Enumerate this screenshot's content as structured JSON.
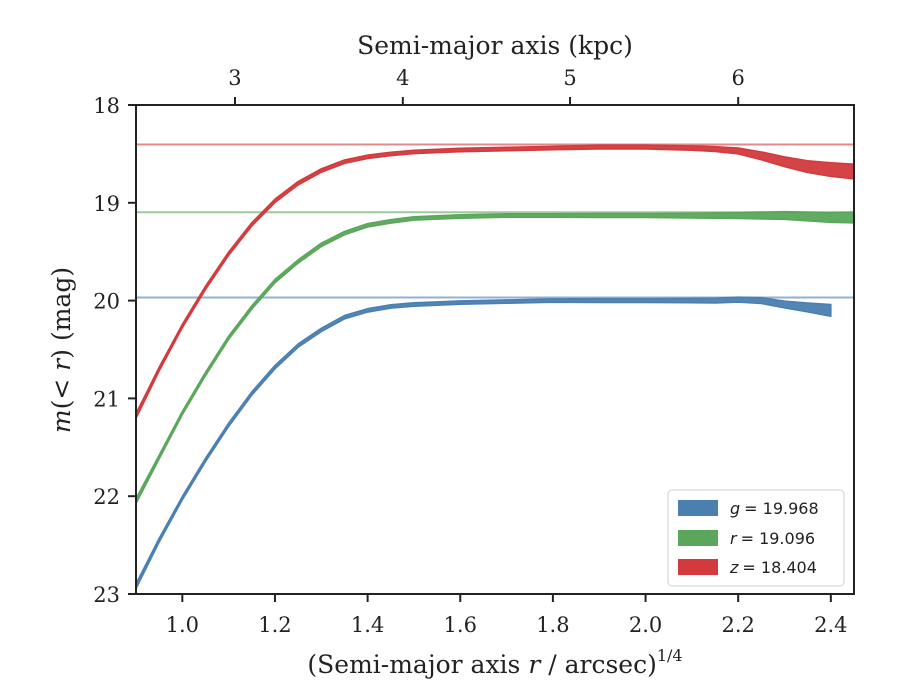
{
  "chart_data": {
    "type": "line",
    "xlabel": "(Semi-major axis r / arcsec)^1/4",
    "xlabel_parts": {
      "pre": "(Semi-major axis ",
      "var": "r",
      "post": " / arcsec)",
      "sup": "1/4"
    },
    "ylabel": "m(<r) (mag)",
    "ylabel_parts": {
      "func": "m",
      "open": "(",
      "arg": "< r",
      "close": ")",
      "unit": " (mag)"
    },
    "top_xlabel": "Semi-major axis (kpc)",
    "xlim": [
      0.9,
      2.45
    ],
    "ylim": [
      23,
      18
    ],
    "y_inverted": true,
    "x_ticks": [
      1.0,
      1.2,
      1.4,
      1.6,
      1.8,
      2.0,
      2.2,
      2.4
    ],
    "x_tick_labels": [
      "1.0",
      "1.2",
      "1.4",
      "1.6",
      "1.8",
      "2.0",
      "2.2",
      "2.4"
    ],
    "y_ticks": [
      18,
      19,
      20,
      21,
      22,
      23
    ],
    "y_tick_labels": [
      "18",
      "19",
      "20",
      "21",
      "22",
      "23"
    ],
    "top_x_ticks": [
      1.1137,
      1.476,
      1.837,
      2.2
    ],
    "top_x_tick_labels": [
      "3",
      "4",
      "5",
      "6"
    ],
    "grid": false,
    "legend_position": "lower-right",
    "series": [
      {
        "name": "g = 19.968",
        "legend_var": "g",
        "legend_value": "= 19.968",
        "color": "#4a7fb0",
        "asymptote": 19.968,
        "x": [
          0.9,
          0.95,
          1.0,
          1.05,
          1.1,
          1.15,
          1.2,
          1.25,
          1.3,
          1.35,
          1.4,
          1.45,
          1.5,
          1.55,
          1.6,
          1.7,
          1.8,
          1.9,
          2.0,
          2.1,
          2.15,
          2.2,
          2.25,
          2.3,
          2.35,
          2.4
        ],
        "y": [
          22.92,
          22.45,
          22.02,
          21.63,
          21.27,
          20.95,
          20.68,
          20.46,
          20.3,
          20.17,
          20.1,
          20.06,
          20.04,
          20.03,
          20.02,
          20.01,
          20.0,
          20.0,
          20.0,
          20.0,
          20.0,
          19.99,
          20.0,
          20.04,
          20.07,
          20.1
        ],
        "band_width": [
          0.05,
          0.04,
          0.035,
          0.035,
          0.035,
          0.035,
          0.035,
          0.035,
          0.035,
          0.035,
          0.035,
          0.035,
          0.035,
          0.035,
          0.035,
          0.035,
          0.035,
          0.04,
          0.04,
          0.045,
          0.05,
          0.05,
          0.06,
          0.07,
          0.09,
          0.12
        ]
      },
      {
        "name": "r = 19.096",
        "legend_var": "r",
        "legend_value": "= 19.096",
        "color": "#5aa65a",
        "asymptote": 19.096,
        "x": [
          0.9,
          0.95,
          1.0,
          1.05,
          1.1,
          1.15,
          1.2,
          1.25,
          1.3,
          1.35,
          1.4,
          1.45,
          1.5,
          1.55,
          1.6,
          1.7,
          1.8,
          1.9,
          2.0,
          2.1,
          2.2,
          2.3,
          2.4,
          2.45
        ],
        "y": [
          22.05,
          21.6,
          21.15,
          20.75,
          20.38,
          20.07,
          19.8,
          19.6,
          19.43,
          19.31,
          19.23,
          19.19,
          19.16,
          19.15,
          19.14,
          19.13,
          19.13,
          19.13,
          19.13,
          19.13,
          19.13,
          19.13,
          19.15,
          19.15
        ],
        "band_width": [
          0.05,
          0.04,
          0.035,
          0.035,
          0.035,
          0.035,
          0.035,
          0.035,
          0.035,
          0.035,
          0.035,
          0.035,
          0.035,
          0.035,
          0.035,
          0.035,
          0.035,
          0.04,
          0.04,
          0.05,
          0.06,
          0.08,
          0.1,
          0.11
        ]
      },
      {
        "name": "z = 18.404",
        "legend_var": "z",
        "legend_value": "= 18.404",
        "color": "#d23a3d",
        "asymptote": 18.404,
        "x": [
          0.9,
          0.95,
          1.0,
          1.05,
          1.1,
          1.15,
          1.2,
          1.25,
          1.3,
          1.35,
          1.4,
          1.45,
          1.5,
          1.55,
          1.6,
          1.7,
          1.8,
          1.9,
          2.0,
          2.1,
          2.15,
          2.2,
          2.25,
          2.3,
          2.35,
          2.4,
          2.45
        ],
        "y": [
          21.18,
          20.7,
          20.26,
          19.87,
          19.52,
          19.22,
          18.98,
          18.8,
          18.67,
          18.58,
          18.53,
          18.5,
          18.48,
          18.47,
          18.46,
          18.45,
          18.44,
          18.43,
          18.43,
          18.44,
          18.45,
          18.47,
          18.52,
          18.58,
          18.63,
          18.66,
          18.68
        ],
        "band_width": [
          0.05,
          0.04,
          0.035,
          0.035,
          0.035,
          0.035,
          0.035,
          0.035,
          0.035,
          0.035,
          0.035,
          0.035,
          0.035,
          0.035,
          0.035,
          0.035,
          0.035,
          0.04,
          0.04,
          0.045,
          0.05,
          0.06,
          0.08,
          0.1,
          0.12,
          0.14,
          0.15
        ]
      }
    ]
  }
}
